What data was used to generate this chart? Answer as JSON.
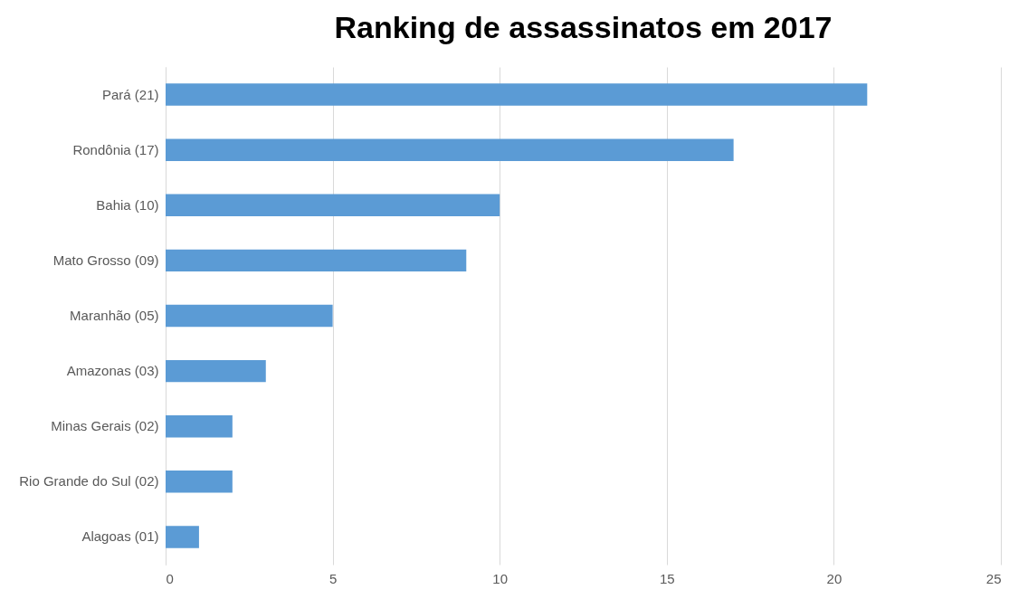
{
  "chart_data": {
    "type": "bar",
    "title": "Ranking de assassinatos em 2017",
    "orientation": "horizontal",
    "categories": [
      "Pará (21)",
      "Rondônia (17)",
      "Bahia (10)",
      "Mato Grosso (09)",
      "Maranhão (05)",
      "Amazonas (03)",
      "Minas Gerais (02)",
      "Rio Grande do Sul (02)",
      "Alagoas (01)"
    ],
    "values": [
      21,
      17,
      10,
      9,
      5,
      3,
      2,
      2,
      1
    ],
    "color": "#5b9bd5",
    "xlim": [
      0,
      25
    ],
    "xticks": [
      0,
      5,
      10,
      15,
      20,
      25
    ],
    "grid": "x"
  }
}
